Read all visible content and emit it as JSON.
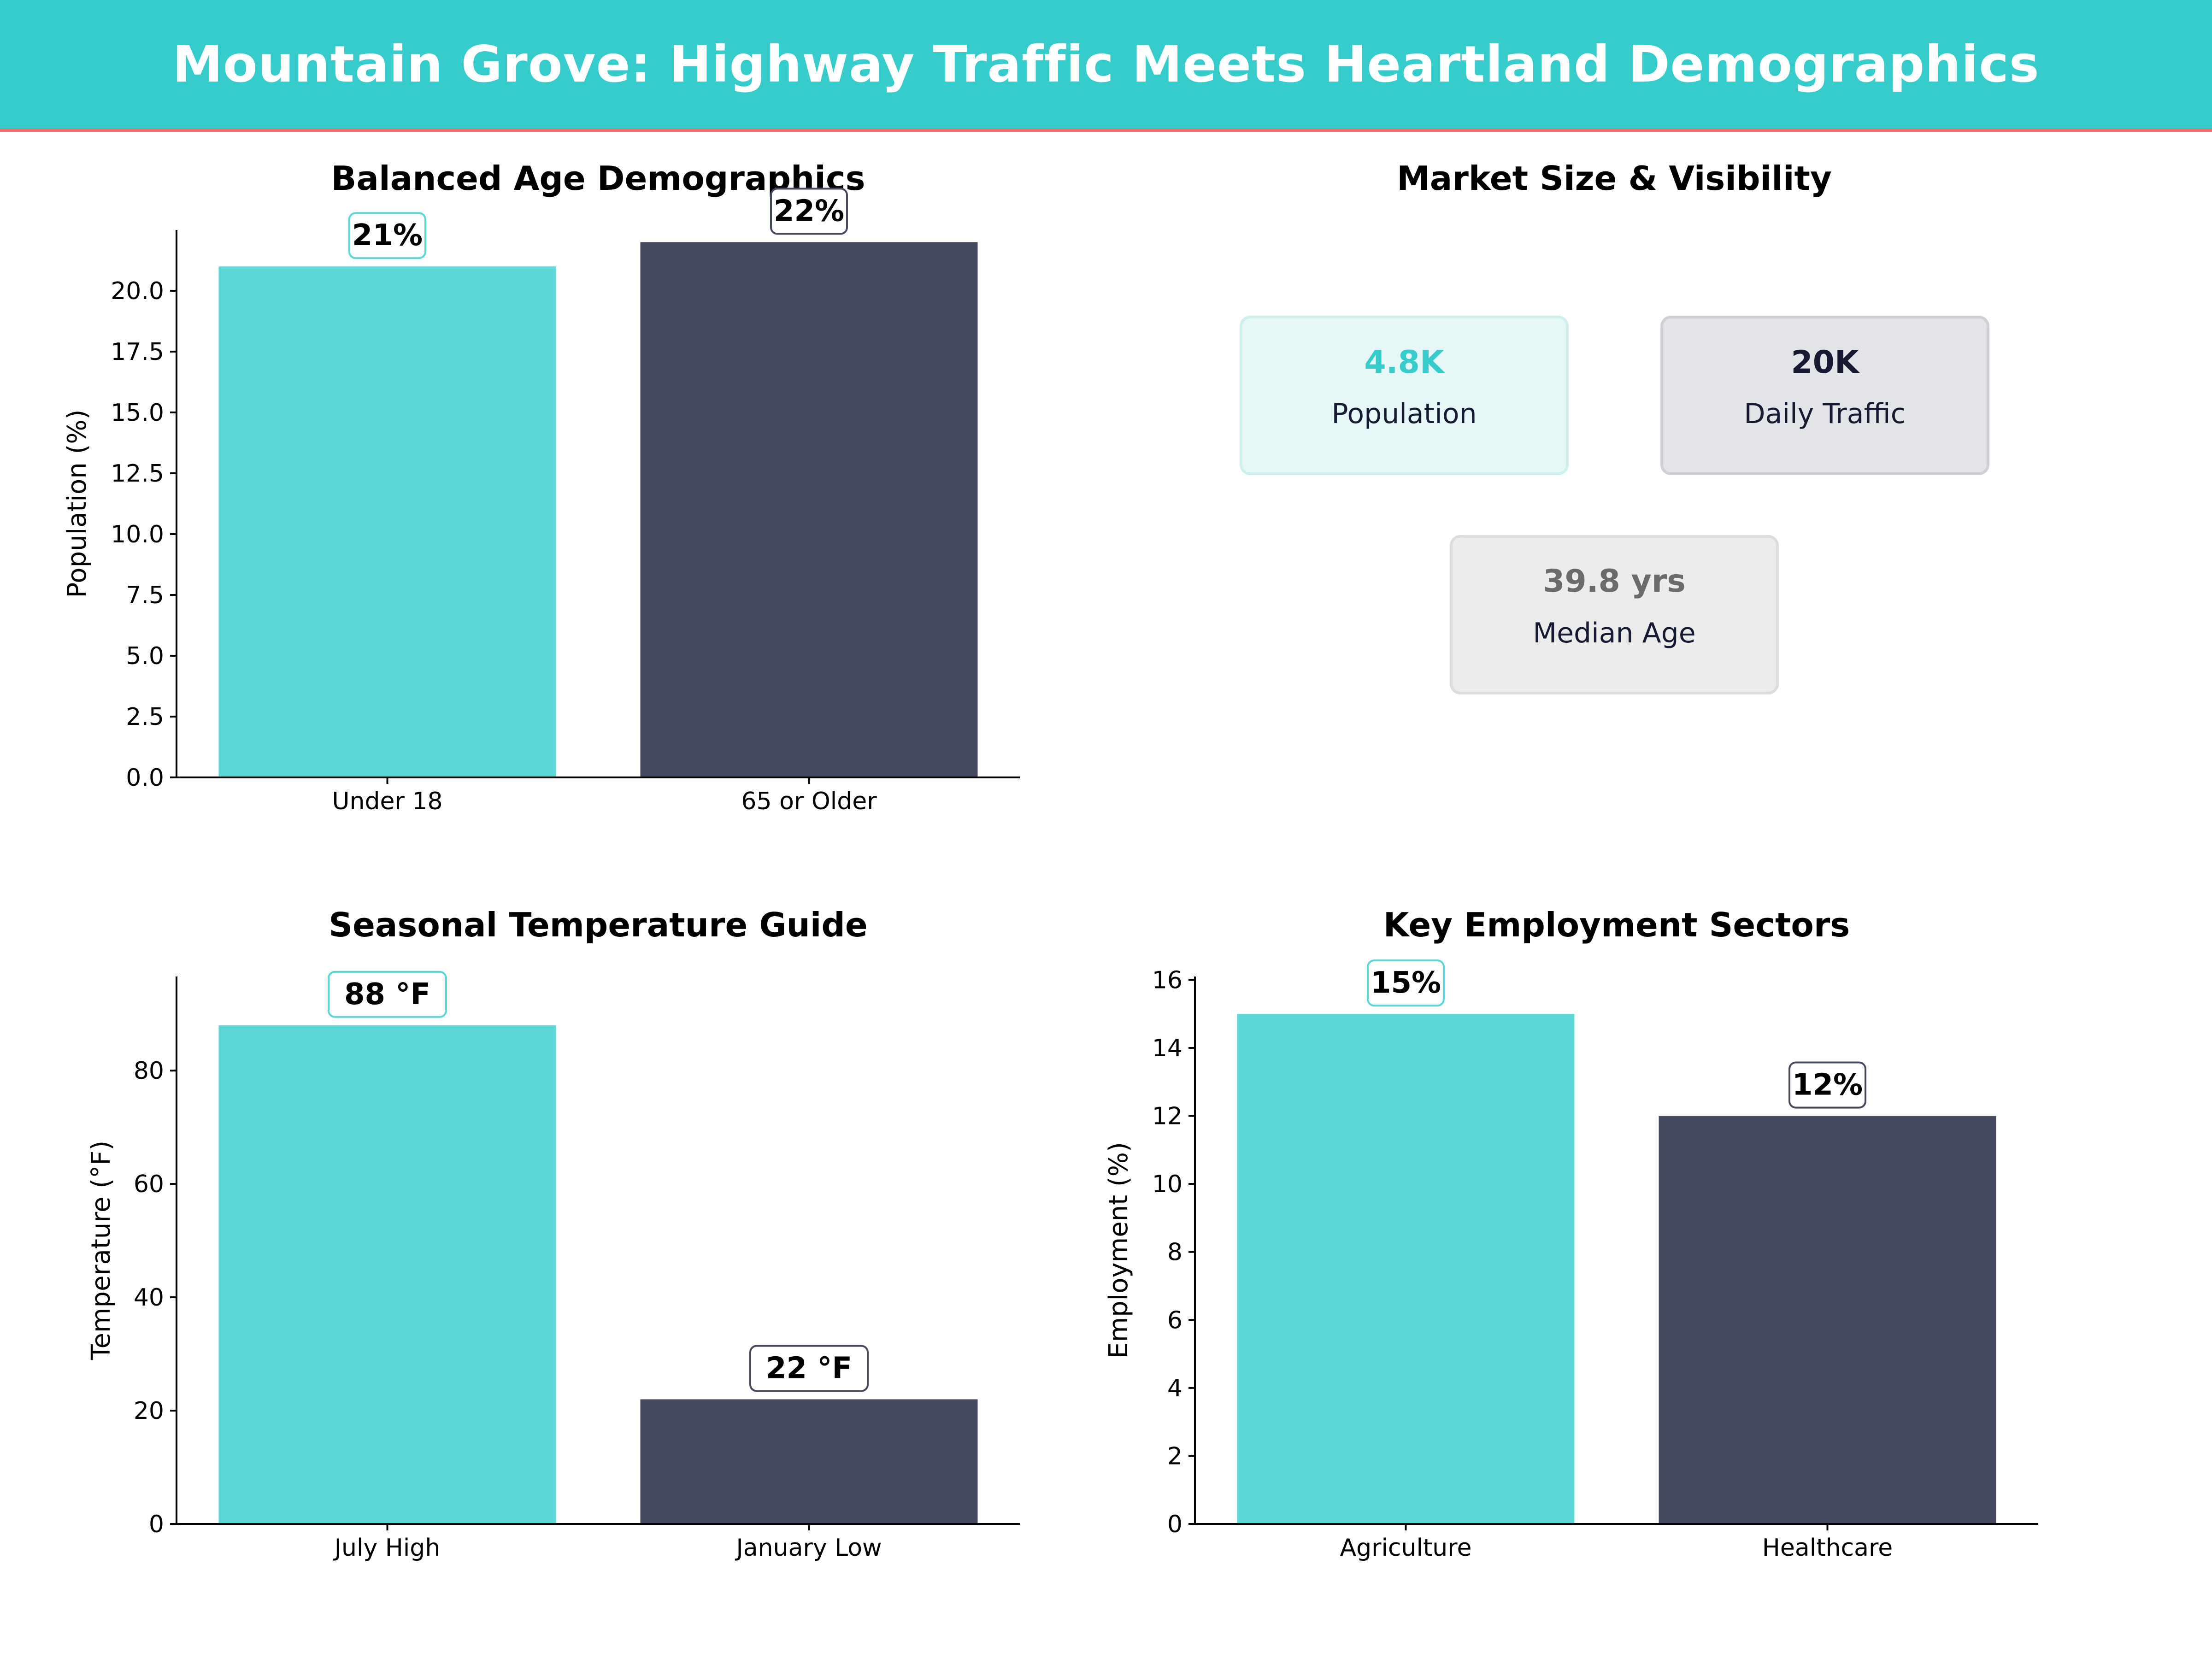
{
  "title": "Mountain Grove: Highway Traffic Meets Heartland Demographics",
  "colors": {
    "banner": "#36cccc",
    "banner_rule": "#ff6b6b",
    "teal": "#5cd6d6",
    "slate": "#464a60",
    "teal_text": "#36cccc",
    "navy_text": "#161b33",
    "gray_text": "#6b6b6b"
  },
  "kpi_panel": {
    "title": "Market Size & Visibility",
    "cards": [
      {
        "value": "4.8K",
        "label": "Population",
        "style": "teal"
      },
      {
        "value": "20K",
        "label": "Daily Traffic",
        "style": "slate"
      },
      {
        "value": "39.8 yrs",
        "label": "Median Age",
        "style": "gray"
      }
    ]
  },
  "chart_data": [
    {
      "type": "bar",
      "title": "Balanced Age Demographics",
      "ylabel": "Population (%)",
      "xlabel": "",
      "categories": [
        "Under 18",
        "65 or Older"
      ],
      "values": [
        21,
        22
      ],
      "data_labels": [
        "21%",
        "22%"
      ],
      "ylim": [
        0,
        22.5
      ],
      "yticks": [
        0,
        2.5,
        5,
        7.5,
        10,
        12.5,
        15,
        17.5,
        20
      ],
      "ytick_labels": [
        "0.0",
        "2.5",
        "5.0",
        "7.5",
        "10.0",
        "12.5",
        "15.0",
        "17.5",
        "20.0"
      ],
      "grid": false
    },
    {
      "type": "bar",
      "title": "Seasonal Temperature Guide",
      "ylabel": "Temperature (°F)",
      "xlabel": "",
      "categories": [
        "July High",
        "January Low"
      ],
      "values": [
        88,
        22
      ],
      "data_labels": [
        "88 °F",
        "22 °F"
      ],
      "ylim": [
        0,
        96.6
      ],
      "yticks": [
        0,
        20,
        40,
        60,
        80
      ],
      "ytick_labels": [
        "0",
        "20",
        "40",
        "60",
        "80"
      ],
      "grid": false
    },
    {
      "type": "bar",
      "title": "Key Employment Sectors",
      "ylabel": "Employment (%)",
      "xlabel": "",
      "categories": [
        "Agriculture",
        "Healthcare"
      ],
      "values": [
        15,
        12
      ],
      "data_labels": [
        "15%",
        "12%"
      ],
      "ylim": [
        0,
        16.1
      ],
      "yticks": [
        0,
        2,
        4,
        6,
        8,
        10,
        12,
        14,
        16
      ],
      "ytick_labels": [
        "0",
        "2",
        "4",
        "6",
        "8",
        "10",
        "12",
        "14",
        "16"
      ],
      "grid": false
    }
  ]
}
